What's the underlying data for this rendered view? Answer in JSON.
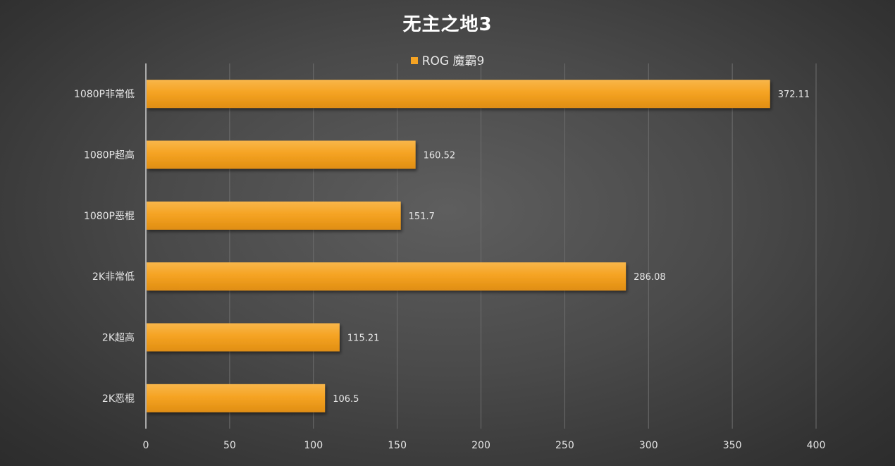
{
  "chart_data": {
    "type": "bar",
    "orientation": "horizontal",
    "title": "无主之地3",
    "categories": [
      "1080P非常低",
      "1080P超高",
      "1080P恶棍",
      "2K非常低",
      "2K超高",
      "2K恶棍"
    ],
    "series": [
      {
        "name": "ROG 魔霸9",
        "values": [
          372.11,
          160.52,
          151.7,
          286.08,
          115.21,
          106.5
        ],
        "data_labels": [
          "372.11",
          "160.52",
          "151.7",
          "286.08",
          "115.21",
          "106.5"
        ],
        "color": "#f5a323"
      }
    ],
    "xlim": [
      0,
      400
    ],
    "xticks": [
      0,
      50,
      100,
      150,
      200,
      250,
      300,
      350,
      400
    ],
    "xtick_labels": [
      "0",
      "50",
      "100",
      "150",
      "200",
      "250",
      "300",
      "350",
      "400"
    ],
    "xlabel": "",
    "ylabel": "",
    "grid": "vertical",
    "legend_position": "top"
  },
  "colors": {
    "bar": "#f5a323",
    "bar_light": "#f8b64a",
    "bar_dark": "#e08e12",
    "grid": "#6e6e6e",
    "axis": "#d0d0d0",
    "text": "#e6e6e6"
  }
}
